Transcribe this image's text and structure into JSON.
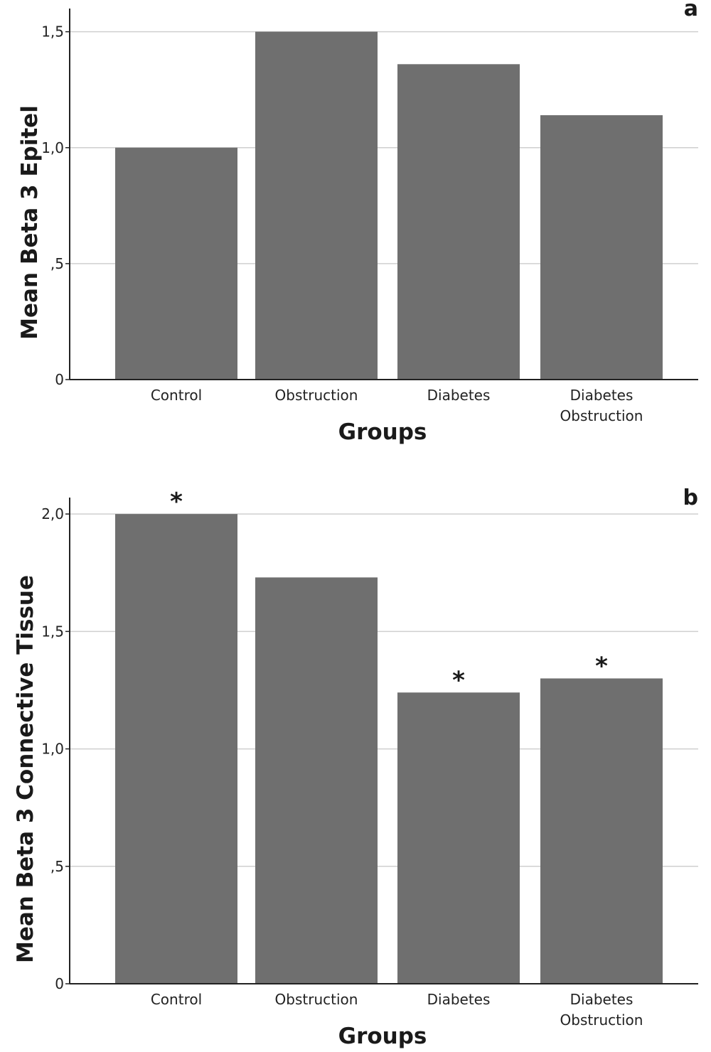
{
  "colors": {
    "bar": "#6f6f6f",
    "grid": "#cfcfcf",
    "axis": "#222222"
  },
  "chart_data": [
    {
      "type": "bar",
      "panel_label": "a",
      "categories": [
        [
          "Control"
        ],
        [
          "Obstruction"
        ],
        [
          "Diabetes"
        ],
        [
          "Diabetes",
          "Obstruction"
        ]
      ],
      "values": [
        1.0,
        1.5,
        1.36,
        1.14
      ],
      "significance": [
        "",
        "",
        "",
        ""
      ],
      "xlabel": "Groups",
      "ylabel": "Mean Beta 3 Epitel",
      "ylim": [
        0,
        1.6
      ],
      "yticks": [
        0,
        0.5,
        1.0,
        1.5
      ],
      "ytick_labels": [
        "0",
        ",5",
        "1,0",
        "1,5"
      ],
      "grid": true
    },
    {
      "type": "bar",
      "panel_label": "b",
      "categories": [
        [
          "Control"
        ],
        [
          "Obstruction"
        ],
        [
          "Diabetes"
        ],
        [
          "Diabetes",
          "Obstruction"
        ]
      ],
      "values": [
        2.0,
        1.73,
        1.24,
        1.3
      ],
      "significance": [
        "*",
        "",
        "*",
        "*"
      ],
      "xlabel": "Groups",
      "ylabel": "Mean Beta 3 Connective Tissue",
      "ylim": [
        0,
        2.07
      ],
      "yticks": [
        0,
        0.5,
        1.0,
        1.5,
        2.0
      ],
      "ytick_labels": [
        "0",
        ",5",
        "1,0",
        "1,5",
        "2,0"
      ],
      "grid": true
    }
  ]
}
